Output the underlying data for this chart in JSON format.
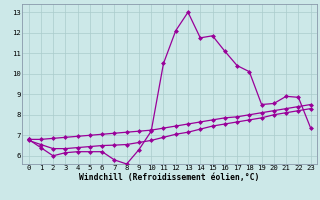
{
  "title": "",
  "xlabel": "Windchill (Refroidissement éolien,°C)",
  "background_color": "#cce8e8",
  "line_color": "#990099",
  "grid_color": "#aacccc",
  "xlim": [
    -0.5,
    23.5
  ],
  "ylim": [
    5.6,
    13.4
  ],
  "xticks": [
    0,
    1,
    2,
    3,
    4,
    5,
    6,
    7,
    8,
    9,
    10,
    11,
    12,
    13,
    14,
    15,
    16,
    17,
    18,
    19,
    20,
    21,
    22,
    23
  ],
  "yticks": [
    6,
    7,
    8,
    9,
    10,
    11,
    12,
    13
  ],
  "curve1_x": [
    0,
    1,
    2,
    3,
    4,
    5,
    6,
    7,
    8,
    9,
    10,
    11,
    12,
    13,
    14,
    15,
    16,
    17,
    18,
    19,
    20,
    21,
    22,
    23
  ],
  "curve1_y": [
    6.8,
    6.4,
    6.0,
    6.15,
    6.2,
    6.2,
    6.2,
    5.8,
    5.6,
    6.3,
    7.2,
    10.5,
    12.1,
    13.0,
    11.75,
    11.85,
    11.1,
    10.4,
    10.1,
    8.5,
    8.55,
    8.9,
    8.85,
    7.35
  ],
  "curve2_x": [
    0,
    1,
    2,
    3,
    4,
    5,
    6,
    7,
    8,
    9,
    10,
    11,
    12,
    13,
    14,
    15,
    16,
    17,
    18,
    19,
    20,
    21,
    22,
    23
  ],
  "curve2_y": [
    6.75,
    6.55,
    6.35,
    6.35,
    6.4,
    6.45,
    6.5,
    6.52,
    6.55,
    6.65,
    6.75,
    6.9,
    7.05,
    7.15,
    7.3,
    7.45,
    7.55,
    7.65,
    7.75,
    7.85,
    8.0,
    8.1,
    8.2,
    8.3
  ],
  "curve3_x": [
    0,
    1,
    2,
    3,
    4,
    5,
    6,
    7,
    8,
    9,
    10,
    11,
    12,
    13,
    14,
    15,
    16,
    17,
    18,
    19,
    20,
    21,
    22,
    23
  ],
  "curve3_y": [
    6.8,
    6.8,
    6.85,
    6.9,
    6.95,
    7.0,
    7.05,
    7.1,
    7.15,
    7.2,
    7.25,
    7.35,
    7.45,
    7.55,
    7.65,
    7.75,
    7.85,
    7.9,
    8.0,
    8.1,
    8.2,
    8.3,
    8.4,
    8.5
  ],
  "marker": "D",
  "markersize": 2.5,
  "linewidth": 0.9,
  "tick_fontsize": 5.2,
  "label_fontsize": 5.8
}
